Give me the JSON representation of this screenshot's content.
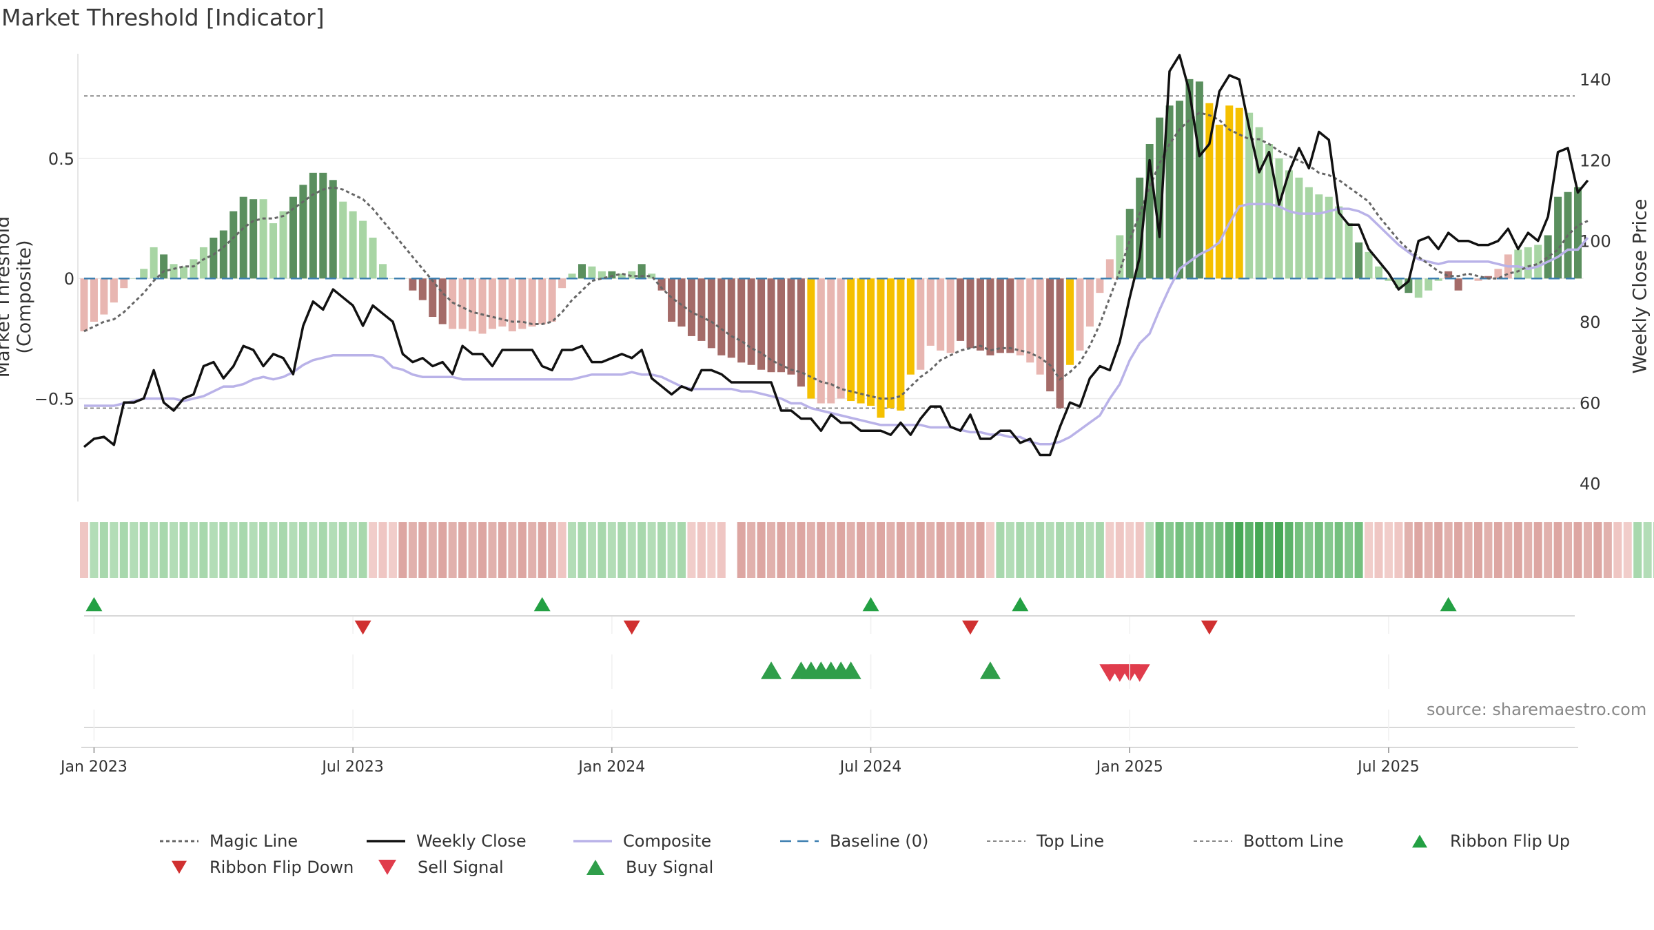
{
  "title": "Market Threshold [Indicator]",
  "source": "source: sharemaestro.com",
  "legend": [
    {
      "label": "Magic Line",
      "key": "magic"
    },
    {
      "label": "Weekly Close",
      "key": "close"
    },
    {
      "label": "Composite",
      "key": "composite"
    },
    {
      "label": "Baseline (0)",
      "key": "baseline"
    },
    {
      "label": "Top Line",
      "key": "top"
    },
    {
      "label": "Bottom Line",
      "key": "bottom"
    },
    {
      "label": "Ribbon Flip Up",
      "key": "flipup"
    },
    {
      "label": "Ribbon Flip Down",
      "key": "flipdown"
    },
    {
      "label": "Sell Signal",
      "key": "sell"
    },
    {
      "label": "Buy Signal",
      "key": "buy"
    }
  ],
  "colors": {
    "pos_dark": "#5a8f5e",
    "pos_light": "#a8d5a4",
    "neg_dark": "#a46b68",
    "neg_light": "#e8b6b1",
    "extreme": "#f5c000",
    "close": "#111111",
    "composite": "#b9b2e8",
    "magic": "#666666",
    "baseline": "#3d7fb0",
    "flip_up": "#23a043",
    "flip_down": "#d03030",
    "sell": "#e03c4c",
    "buy": "#2f9e4a"
  },
  "chart_data": {
    "type": "bar",
    "ylabel": "Market Threshold (Composite)",
    "y2label": "Weekly Close Price",
    "ylim": [
      -0.92,
      0.93
    ],
    "y2lim": [
      36,
      146
    ],
    "yticks": [
      0.5,
      0,
      -0.5
    ],
    "ytick_labels": [
      "0.5",
      "0",
      "−0.5"
    ],
    "y2ticks": [
      40,
      60,
      80,
      100,
      120,
      140
    ],
    "top_line": 0.76,
    "bottom_line": -0.54,
    "x_start": "2022-12-25",
    "x_tick_labels": [
      "Jan 2023",
      "Jul 2023",
      "Jan 2024",
      "Jul 2024",
      "Jan 2025",
      "Jul 2025"
    ],
    "x_tick_weeks": [
      1,
      27,
      53,
      79,
      105,
      131
    ],
    "composite_bars": [
      -0.22,
      -0.18,
      -0.15,
      -0.1,
      -0.04,
      0,
      0.04,
      0.13,
      0.1,
      0.06,
      0.05,
      0.08,
      0.13,
      0.17,
      0.2,
      0.28,
      0.34,
      0.33,
      0.33,
      0.23,
      0.28,
      0.34,
      0.39,
      0.44,
      0.44,
      0.41,
      0.32,
      0.28,
      0.24,
      0.17,
      0.06,
      0,
      0,
      -0.05,
      -0.09,
      -0.16,
      -0.19,
      -0.21,
      -0.21,
      -0.22,
      -0.23,
      -0.21,
      -0.2,
      -0.22,
      -0.21,
      -0.2,
      -0.19,
      -0.18,
      -0.04,
      0.02,
      0.06,
      0.05,
      0.03,
      0.03,
      0.02,
      0.03,
      0.06,
      0.02,
      -0.05,
      -0.18,
      -0.2,
      -0.24,
      -0.26,
      -0.29,
      -0.32,
      -0.33,
      -0.35,
      -0.36,
      -0.38,
      -0.39,
      -0.39,
      -0.4,
      -0.45,
      -0.5,
      -0.52,
      -0.52,
      -0.5,
      -0.51,
      -0.52,
      -0.53,
      -0.58,
      -0.54,
      -0.55,
      -0.4,
      -0.38,
      -0.28,
      -0.3,
      -0.31,
      -0.26,
      -0.29,
      -0.3,
      -0.32,
      -0.31,
      -0.31,
      -0.32,
      -0.35,
      -0.4,
      -0.47,
      -0.54,
      -0.36,
      -0.3,
      -0.2,
      -0.06,
      0.08,
      0.18,
      0.29,
      0.42,
      0.56,
      0.67,
      0.72,
      0.74,
      0.83,
      0.82,
      0.73,
      0.64,
      0.72,
      0.71,
      0.69,
      0.63,
      0.56,
      0.5,
      0.45,
      0.42,
      0.38,
      0.35,
      0.34,
      0.3,
      0.23,
      0.15,
      0.11,
      0.05,
      -0.01,
      -0.04,
      -0.06,
      -0.08,
      -0.05,
      -0.01,
      0.03,
      -0.05,
      0,
      -0.01,
      0.01,
      0.04,
      0.1,
      0.12,
      0.13,
      0.14,
      0.18,
      0.34,
      0.36,
      0.38
    ],
    "composite_bar_kind": [
      "nl",
      "nl",
      "nl",
      "nl",
      "nl",
      "pl",
      "pl",
      "pl",
      "pd",
      "pl",
      "pl",
      "pl",
      "pl",
      "pd",
      "pd",
      "pd",
      "pd",
      "pd",
      "pl",
      "pl",
      "pl",
      "pd",
      "pd",
      "pd",
      "pd",
      "pd",
      "pl",
      "pl",
      "pl",
      "pl",
      "pl",
      "pl",
      "pl",
      "nd",
      "nd",
      "nd",
      "nd",
      "nl",
      "nl",
      "nl",
      "nl",
      "nl",
      "nl",
      "nl",
      "nl",
      "nl",
      "nl",
      "nl",
      "nl",
      "pl",
      "pd",
      "pl",
      "pl",
      "pd",
      "pl",
      "pl",
      "pd",
      "pl",
      "nd",
      "nd",
      "nd",
      "nd",
      "nd",
      "nd",
      "nd",
      "nd",
      "nd",
      "nd",
      "nd",
      "nd",
      "nd",
      "nd",
      "nd",
      "ex",
      "nl",
      "nl",
      "nl",
      "ex",
      "ex",
      "ex",
      "ex",
      "ex",
      "ex",
      "ex",
      "nl",
      "nl",
      "nl",
      "nl",
      "nd",
      "nd",
      "nd",
      "nd",
      "nd",
      "nd",
      "nl",
      "nl",
      "nl",
      "nd",
      "nd",
      "ex",
      "nl",
      "nl",
      "nl",
      "nl",
      "pl",
      "pd",
      "pd",
      "pd",
      "pd",
      "pd",
      "pd",
      "pd",
      "pd",
      "ex",
      "ex",
      "ex",
      "ex",
      "pl",
      "pl",
      "pl",
      "pl",
      "pl",
      "pl",
      "pl",
      "pl",
      "pl",
      "pl",
      "pl",
      "pd",
      "pl",
      "pl",
      "pl",
      "pl",
      "pd",
      "pl",
      "pl",
      "pl",
      "nd",
      "nd",
      "nl",
      "nl",
      "nd",
      "nl",
      "nl",
      "pl",
      "pl",
      "pl",
      "pd",
      "pd",
      "pd",
      "pd",
      "pd",
      "pd",
      "pl",
      "pl",
      "pd"
    ],
    "composite_line": [
      -0.53,
      -0.53,
      -0.53,
      -0.53,
      -0.52,
      -0.51,
      -0.5,
      -0.5,
      -0.5,
      -0.5,
      -0.51,
      -0.5,
      -0.49,
      -0.47,
      -0.45,
      -0.45,
      -0.44,
      -0.42,
      -0.41,
      -0.42,
      -0.41,
      -0.39,
      -0.36,
      -0.34,
      -0.33,
      -0.32,
      -0.32,
      -0.32,
      -0.32,
      -0.32,
      -0.33,
      -0.37,
      -0.38,
      -0.4,
      -0.41,
      -0.41,
      -0.41,
      -0.41,
      -0.42,
      -0.42,
      -0.42,
      -0.42,
      -0.42,
      -0.42,
      -0.42,
      -0.42,
      -0.42,
      -0.42,
      -0.42,
      -0.42,
      -0.41,
      -0.4,
      -0.4,
      -0.4,
      -0.4,
      -0.39,
      -0.4,
      -0.4,
      -0.41,
      -0.43,
      -0.45,
      -0.46,
      -0.46,
      -0.46,
      -0.46,
      -0.46,
      -0.47,
      -0.47,
      -0.48,
      -0.49,
      -0.5,
      -0.52,
      -0.52,
      -0.54,
      -0.55,
      -0.56,
      -0.57,
      -0.58,
      -0.59,
      -0.6,
      -0.61,
      -0.61,
      -0.61,
      -0.61,
      -0.61,
      -0.62,
      -0.62,
      -0.62,
      -0.63,
      -0.64,
      -0.64,
      -0.65,
      -0.65,
      -0.66,
      -0.66,
      -0.68,
      -0.69,
      -0.69,
      -0.68,
      -0.66,
      -0.63,
      -0.6,
      -0.57,
      -0.5,
      -0.44,
      -0.34,
      -0.27,
      -0.23,
      -0.13,
      -0.04,
      0.04,
      0.07,
      0.1,
      0.12,
      0.15,
      0.23,
      0.3,
      0.31,
      0.31,
      0.31,
      0.3,
      0.28,
      0.27,
      0.27,
      0.27,
      0.28,
      0.29,
      0.29,
      0.28,
      0.26,
      0.22,
      0.18,
      0.14,
      0.11,
      0.08,
      0.07,
      0.06,
      0.07,
      0.07,
      0.07,
      0.07,
      0.07,
      0.06,
      0.05,
      0.05,
      0.04,
      0.05,
      0.07,
      0.09,
      0.12,
      0.12,
      0.17
    ],
    "magic_line": [
      -0.22,
      -0.2,
      -0.18,
      -0.17,
      -0.14,
      -0.1,
      -0.06,
      -0.01,
      0.03,
      0.04,
      0.05,
      0.05,
      0.08,
      0.1,
      0.13,
      0.17,
      0.21,
      0.24,
      0.25,
      0.25,
      0.26,
      0.29,
      0.32,
      0.35,
      0.37,
      0.38,
      0.37,
      0.35,
      0.33,
      0.29,
      0.24,
      0.19,
      0.14,
      0.09,
      0.04,
      -0.01,
      -0.06,
      -0.1,
      -0.12,
      -0.14,
      -0.15,
      -0.16,
      -0.17,
      -0.18,
      -0.18,
      -0.19,
      -0.19,
      -0.18,
      -0.14,
      -0.09,
      -0.05,
      -0.01,
      0.0,
      0.01,
      0.02,
      0.01,
      0.01,
      0.01,
      -0.04,
      -0.08,
      -0.11,
      -0.14,
      -0.16,
      -0.18,
      -0.21,
      -0.24,
      -0.26,
      -0.29,
      -0.31,
      -0.34,
      -0.36,
      -0.38,
      -0.39,
      -0.41,
      -0.43,
      -0.44,
      -0.46,
      -0.47,
      -0.48,
      -0.49,
      -0.5,
      -0.5,
      -0.49,
      -0.45,
      -0.41,
      -0.38,
      -0.34,
      -0.32,
      -0.3,
      -0.29,
      -0.28,
      -0.3,
      -0.29,
      -0.29,
      -0.3,
      -0.31,
      -0.33,
      -0.36,
      -0.42,
      -0.39,
      -0.35,
      -0.28,
      -0.19,
      -0.08,
      0.03,
      0.16,
      0.27,
      0.38,
      0.48,
      0.56,
      0.62,
      0.66,
      0.69,
      0.68,
      0.66,
      0.62,
      0.6,
      0.58,
      0.58,
      0.56,
      0.53,
      0.51,
      0.49,
      0.47,
      0.44,
      0.43,
      0.41,
      0.38,
      0.35,
      0.32,
      0.26,
      0.21,
      0.16,
      0.12,
      0.09,
      0.06,
      0.03,
      0.01,
      0.01,
      0.02,
      0.01,
      0.0,
      0.0,
      0.02,
      0.03,
      0.05,
      0.06,
      0.09,
      0.12,
      0.18,
      0.22,
      0.24
    ],
    "weekly_close": [
      49,
      51,
      51.5,
      49.5,
      60,
      60,
      61,
      68,
      60,
      58,
      61,
      62,
      69,
      70,
      66,
      69,
      74,
      73,
      69,
      72,
      71,
      67,
      79,
      85,
      83,
      88,
      86,
      84,
      79,
      84,
      82,
      80,
      72,
      70,
      71,
      69,
      70,
      67,
      74,
      72,
      72,
      69,
      73,
      73,
      73,
      73,
      69,
      68,
      73,
      73,
      74,
      70,
      70,
      71,
      72,
      71,
      73,
      66,
      64,
      62,
      64,
      63,
      68,
      68,
      67,
      65,
      65,
      65,
      65,
      65,
      58,
      58,
      56,
      56,
      53,
      57,
      55,
      55,
      53,
      53,
      53,
      52,
      55,
      52,
      56,
      59,
      59,
      54,
      53,
      57,
      51,
      51,
      53,
      53,
      50,
      51,
      47,
      47,
      54,
      60,
      59,
      66,
      69,
      68,
      75,
      86,
      96,
      120,
      101,
      142,
      146,
      137,
      121,
      124,
      137,
      141,
      140,
      128,
      117,
      122,
      109,
      117,
      123,
      118,
      127,
      125,
      107,
      104,
      104,
      98,
      95,
      92,
      88,
      90,
      100,
      101,
      98,
      102,
      100,
      100,
      99,
      99,
      100,
      103,
      98,
      102,
      100,
      106,
      122,
      123,
      112,
      115
    ],
    "ribbon_kind": [
      "nl",
      "pl",
      "pl",
      "pl",
      "pl",
      "pl",
      "pl",
      "pl",
      "pl",
      "pl",
      "pl",
      "pl",
      "pl",
      "pl",
      "pl",
      "pl",
      "pl",
      "pl",
      "pl",
      "pl",
      "pl",
      "pl",
      "pl",
      "pl",
      "pl",
      "pl",
      "pl",
      "pl",
      "pl",
      "nl",
      "nl",
      "nl",
      "nd",
      "nd",
      "nd",
      "nd",
      "nd",
      "nd",
      "nd",
      "nd",
      "nd",
      "nd",
      "nd",
      "nd",
      "nd",
      "nd",
      "nd",
      "nd",
      "nl",
      "pl",
      "pl",
      "pl",
      "pl",
      "pl",
      "pl",
      "pl",
      "pl",
      "pl",
      "pl",
      "pl",
      "pl",
      "nl",
      "nl",
      "nl",
      "nl",
      "gap",
      "nd",
      "nd",
      "nd",
      "nd",
      "nd",
      "nd",
      "nd",
      "nd",
      "nd",
      "nd",
      "nd",
      "nd",
      "nd",
      "nd",
      "nd",
      "nd",
      "nd",
      "nd",
      "nd",
      "nd",
      "nd",
      "nd",
      "nd",
      "nd",
      "nd",
      "nl",
      "pl",
      "pl",
      "pl",
      "pl",
      "pl",
      "pl",
      "pl",
      "pl",
      "pl",
      "pl",
      "pl",
      "nl",
      "nl",
      "nl",
      "nl",
      "pl",
      "pm",
      "pm",
      "pm",
      "pm",
      "pm",
      "pm",
      "pm",
      "pd",
      "pd",
      "pd",
      "pd",
      "pd",
      "pd",
      "pd",
      "pm",
      "pm",
      "pm",
      "pm",
      "pm",
      "pm",
      "pm",
      "nl",
      "nl",
      "nl",
      "nl",
      "nd",
      "nd",
      "nd",
      "nd",
      "nd",
      "nd",
      "nd",
      "nd",
      "nd",
      "nd",
      "nd",
      "nd",
      "nd",
      "nd",
      "nd",
      "nd",
      "nd",
      "nd",
      "nd",
      "nd",
      "nd",
      "nl",
      "nl",
      "pl",
      "pl",
      "pl",
      "pl",
      "pl",
      "pl",
      "pl"
    ],
    "flip_up_weeks": [
      1,
      46,
      79,
      94,
      137
    ],
    "flip_down_weeks": [
      28,
      55,
      89,
      113
    ],
    "buy_signal_weeks": [
      69,
      72,
      73,
      74,
      75,
      76,
      77,
      91
    ],
    "sell_signal_weeks": [
      103,
      104,
      105,
      106
    ]
  }
}
